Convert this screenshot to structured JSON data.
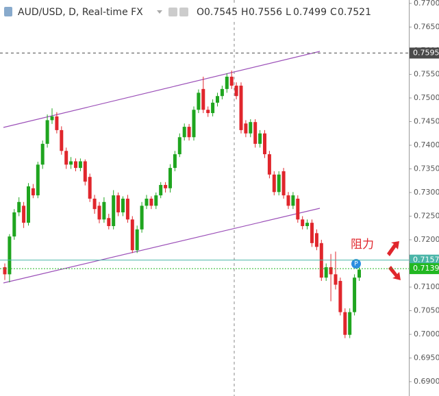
{
  "header": {
    "symbol": "AUD/USD, D, Real-time FX",
    "ohlc": [
      {
        "label": "O",
        "value": "0.7545"
      },
      {
        "label": "H",
        "value": "0.7556"
      },
      {
        "label": "L",
        "value": "0.7499"
      },
      {
        "label": "C",
        "value": "0.7521"
      }
    ]
  },
  "chart_data": {
    "type": "candlestick",
    "open": [
      0.7142,
      0.7127,
      0.7207,
      0.7258,
      0.7272,
      0.7236,
      0.7309,
      0.7294,
      0.7359,
      0.7403,
      0.7453,
      0.7461,
      0.7432,
      0.7388,
      0.7359,
      0.7366,
      0.7352,
      0.7366,
      0.7333,
      0.7287,
      0.7272,
      0.7243,
      0.7246,
      0.7229,
      0.7294,
      0.7258,
      0.7287,
      0.7243,
      0.7178,
      0.7222,
      0.7272,
      0.7287,
      0.7272,
      0.7294,
      0.7316,
      0.7309,
      0.7352,
      0.7381,
      0.7417,
      0.7439,
      0.7417,
      0.7475,
      0.7519,
      0.7475,
      0.7468,
      0.749,
      0.7504,
      0.7519,
      0.7545,
      0.7526,
      0.7526,
      0.7446,
      0.7425,
      0.7449,
      0.7403,
      0.7425,
      0.7381,
      0.7338,
      0.7301,
      0.7345,
      0.7294,
      0.7272,
      0.7287,
      0.7243,
      0.7229,
      0.7236,
      0.7214,
      0.7193,
      0.712,
      0.7142,
      0.7127,
      0.7113,
      0.7047,
      0.6999,
      0.7047,
      0.712
    ],
    "high": [
      0.715,
      0.7212,
      0.7265,
      0.729,
      0.728,
      0.732,
      0.7318,
      0.7365,
      0.741,
      0.7465,
      0.7478,
      0.747,
      0.744,
      0.7395,
      0.7375,
      0.7372,
      0.7372,
      0.737,
      0.734,
      0.7295,
      0.728,
      0.729,
      0.7255,
      0.7305,
      0.73,
      0.7292,
      0.7295,
      0.725,
      0.723,
      0.728,
      0.7295,
      0.7292,
      0.73,
      0.7322,
      0.7322,
      0.736,
      0.7388,
      0.7425,
      0.7446,
      0.7445,
      0.7482,
      0.7518,
      0.7545,
      0.7482,
      0.7497,
      0.7511,
      0.7526,
      0.7552,
      0.7558,
      0.7533,
      0.7533,
      0.7453,
      0.7455,
      0.7455,
      0.7432,
      0.7432,
      0.7388,
      0.7345,
      0.7345,
      0.7352,
      0.7301,
      0.7301,
      0.7294,
      0.725,
      0.7243,
      0.7243,
      0.7222,
      0.72,
      0.715,
      0.717,
      0.7175,
      0.712,
      0.7055,
      0.7055,
      0.7127,
      0.715
    ],
    "low": [
      0.7115,
      0.711,
      0.72,
      0.725,
      0.7225,
      0.723,
      0.7288,
      0.7288,
      0.735,
      0.7395,
      0.7445,
      0.7425,
      0.738,
      0.735,
      0.735,
      0.7345,
      0.7345,
      0.7315,
      0.728,
      0.7255,
      0.7235,
      0.7236,
      0.7222,
      0.7222,
      0.725,
      0.725,
      0.7236,
      0.7172,
      0.7172,
      0.7215,
      0.7265,
      0.7265,
      0.7265,
      0.7288,
      0.73,
      0.73,
      0.7345,
      0.7375,
      0.741,
      0.741,
      0.741,
      0.7468,
      0.7468,
      0.746,
      0.7461,
      0.7482,
      0.7497,
      0.7511,
      0.7519,
      0.7497,
      0.7425,
      0.7417,
      0.7417,
      0.7395,
      0.7395,
      0.7373,
      0.733,
      0.7294,
      0.7294,
      0.7287,
      0.7265,
      0.7265,
      0.7236,
      0.7222,
      0.7222,
      0.7185,
      0.7178,
      0.7113,
      0.7113,
      0.707,
      0.7095,
      0.704,
      0.6992,
      0.6992,
      0.704,
      0.7113
    ],
    "close": [
      0.7127,
      0.7207,
      0.7258,
      0.728,
      0.7236,
      0.7313,
      0.7294,
      0.7359,
      0.7403,
      0.7453,
      0.7461,
      0.7432,
      0.7388,
      0.7359,
      0.7366,
      0.7352,
      0.7366,
      0.7323,
      0.7287,
      0.7265,
      0.7243,
      0.728,
      0.7229,
      0.7294,
      0.7258,
      0.7287,
      0.7243,
      0.7178,
      0.7222,
      0.7272,
      0.7287,
      0.7272,
      0.7294,
      0.7316,
      0.7309,
      0.7352,
      0.7381,
      0.7417,
      0.7439,
      0.7417,
      0.7475,
      0.7511,
      0.7475,
      0.7468,
      0.749,
      0.7504,
      0.7519,
      0.7545,
      0.7526,
      0.7504,
      0.7432,
      0.7425,
      0.7449,
      0.7403,
      0.7425,
      0.7381,
      0.7338,
      0.7301,
      0.7338,
      0.7294,
      0.7272,
      0.7294,
      0.7243,
      0.7229,
      0.7236,
      0.7193,
      0.7185,
      0.712,
      0.7142,
      0.7127,
      0.7105,
      0.7047,
      0.6999,
      0.7047,
      0.712,
      0.7137
    ],
    "up_color": "#1fa51f",
    "down_color": "#e0262c",
    "ylim": [
      0.68696,
      0.77072
    ],
    "yticks": [
      {
        "value": 0.69,
        "label": "0.6900"
      },
      {
        "value": 0.695,
        "label": "0.6950"
      },
      {
        "value": 0.7,
        "label": "0.7000"
      },
      {
        "value": 0.705,
        "label": "0.7050"
      },
      {
        "value": 0.71,
        "label": "0.7100"
      },
      {
        "value": 0.715,
        "label": "0.7150"
      },
      {
        "value": 0.72,
        "label": "0.7200"
      },
      {
        "value": 0.725,
        "label": "0.7250"
      },
      {
        "value": 0.73,
        "label": "0.7300"
      },
      {
        "value": 0.735,
        "label": "0.7350"
      },
      {
        "value": 0.74,
        "label": "0.7400"
      },
      {
        "value": 0.745,
        "label": "0.7450"
      },
      {
        "value": 0.75,
        "label": "0.7500"
      },
      {
        "value": 0.755,
        "label": "0.7550"
      },
      {
        "value": 0.76,
        "label": "0.7600"
      },
      {
        "value": 0.765,
        "label": "0.7650"
      },
      {
        "value": 0.77,
        "label": "0.7700"
      }
    ],
    "levels": [
      {
        "value": 0.7595,
        "color": "#4a4a4a",
        "style": "dashed"
      },
      {
        "value": 0.7157,
        "color": "#4ab5a8",
        "style": "solid"
      },
      {
        "value": 0.7139,
        "color": "#22b822",
        "style": "dotted"
      }
    ],
    "annotation": "阻力",
    "marker": "P"
  }
}
